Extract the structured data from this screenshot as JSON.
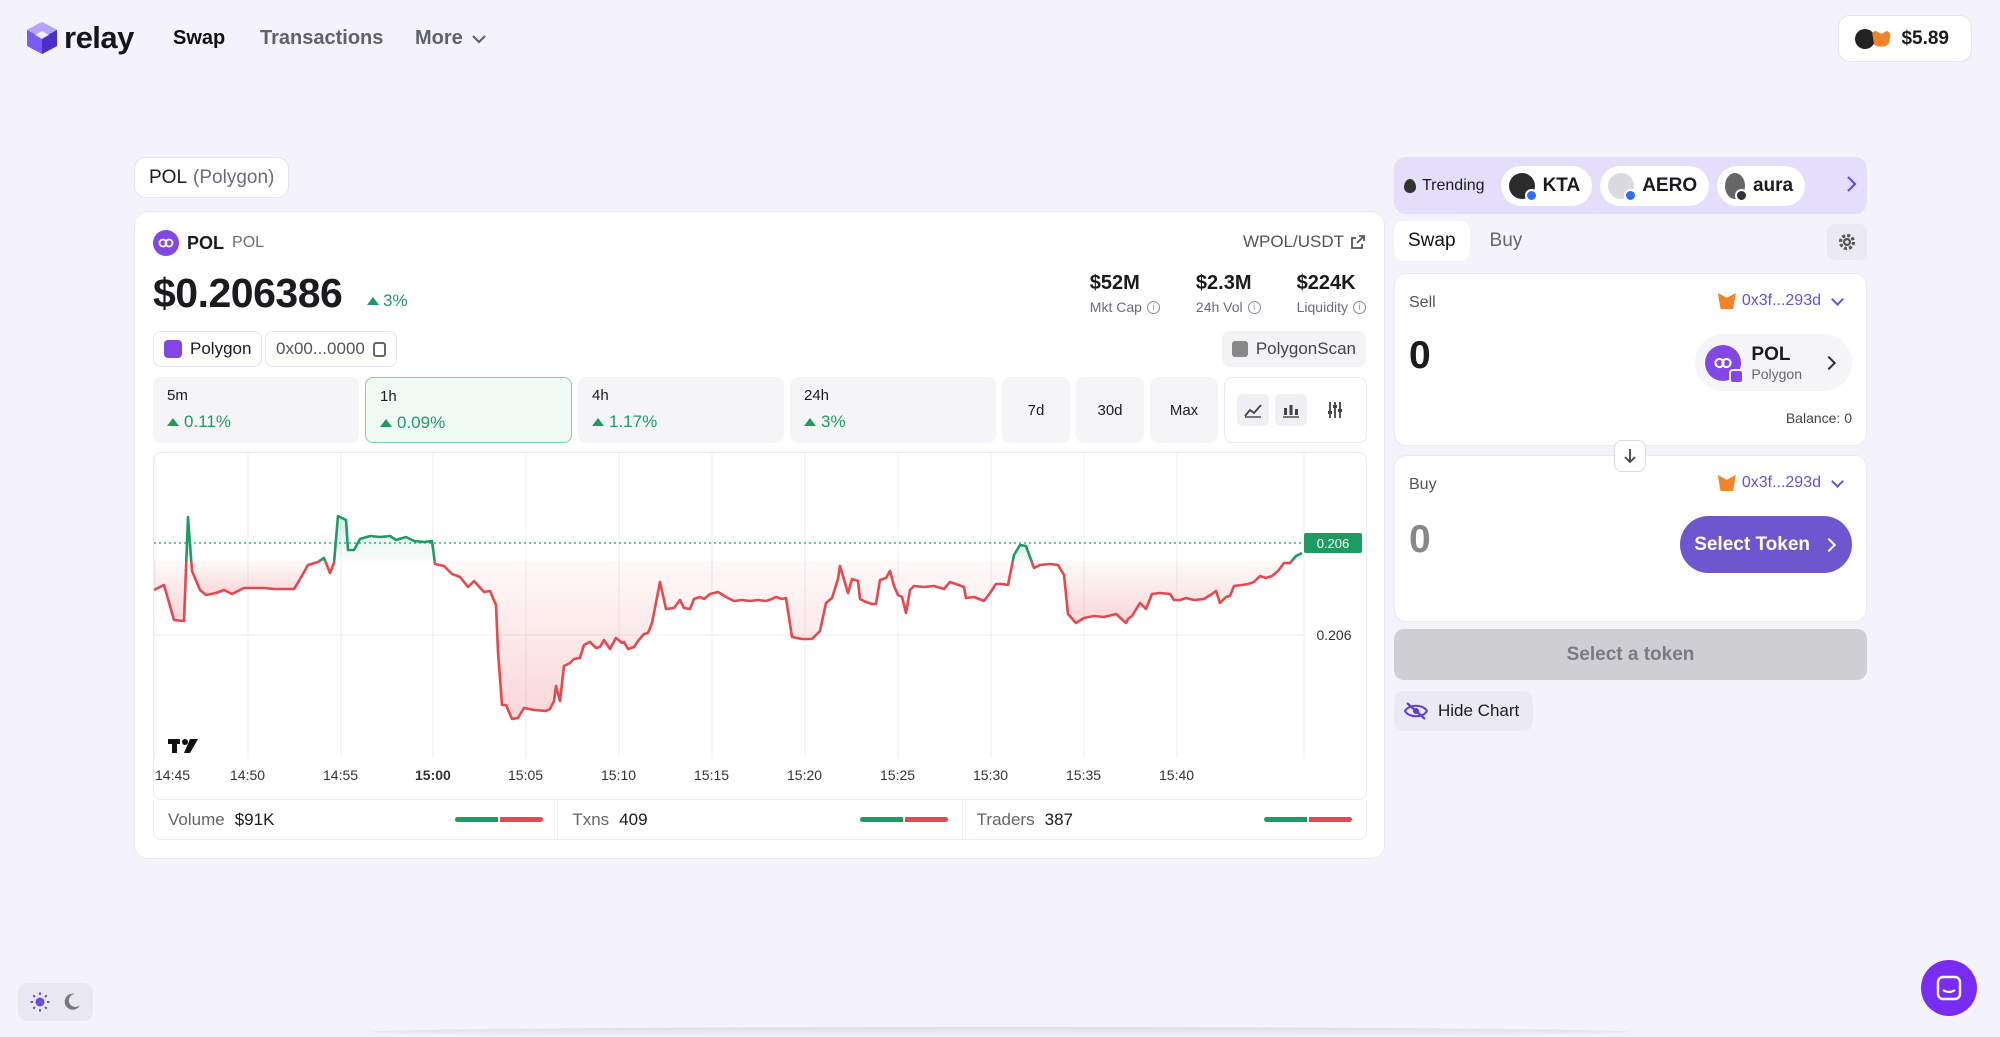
{
  "nav": {
    "brand": "relay",
    "links": [
      "Swap",
      "Transactions",
      "More"
    ],
    "wallet_balance": "$5.89"
  },
  "token_tag": {
    "symbol": "POL",
    "network": "(Polygon)"
  },
  "token": {
    "symbol": "POL",
    "ticker": "POL",
    "pair": "WPOL/USDT",
    "price": "$0.206386",
    "change": "3%",
    "chain": "Polygon",
    "address": "0x00...0000",
    "explorer": "PolygonScan",
    "stats": [
      {
        "value": "$52M",
        "label": "Mkt Cap"
      },
      {
        "value": "$2.3M",
        "label": "24h Vol"
      },
      {
        "value": "$224K",
        "label": "Liquidity"
      }
    ]
  },
  "timeframes": [
    {
      "label": "5m",
      "change": "0.11%"
    },
    {
      "label": "1h",
      "change": "0.09%"
    },
    {
      "label": "4h",
      "change": "1.17%"
    },
    {
      "label": "24h",
      "change": "3%"
    },
    {
      "label": "7d"
    },
    {
      "label": "30d"
    },
    {
      "label": "Max"
    }
  ],
  "chart": {
    "price_tag": "0.206",
    "axis_label": "0.206",
    "x_ticks": [
      "14:45",
      "14:50",
      "14:55",
      "15:00",
      "15:05",
      "15:10",
      "15:15",
      "15:20",
      "15:25",
      "15:30",
      "15:35",
      "15:40"
    ],
    "colors": {
      "up": "#1e9b63",
      "down": "#e5484d"
    }
  },
  "chart_data": {
    "type": "area",
    "x": [
      "14:45",
      "14:50",
      "14:55",
      "15:00",
      "15:05",
      "15:10",
      "15:15",
      "15:20",
      "15:25",
      "15:30",
      "15:35",
      "15:40"
    ],
    "baseline": "0.206",
    "last": "0.206",
    "x_tick_labels": [
      "14:45",
      "14:50",
      "14:55",
      "15:00",
      "15:05",
      "15:10",
      "15:15",
      "15:20",
      "15:25",
      "15:30",
      "15:35",
      "15:40"
    ],
    "y_tick_labels": [
      "0.206"
    ]
  },
  "footer": {
    "volume_label": "Volume",
    "volume": "$91K",
    "txns_label": "Txns",
    "txns": "409",
    "traders_label": "Traders",
    "traders": "387"
  },
  "trending": {
    "label": "Trending",
    "tokens": [
      "KTA",
      "AERO",
      "aura"
    ]
  },
  "swap": {
    "tabs": [
      "Swap",
      "Buy"
    ],
    "sell_label": "Sell",
    "sell_address": "0x3f...293d",
    "sell_amount": "0",
    "sell_token": "POL",
    "sell_chain": "Polygon",
    "balance": "Balance: 0",
    "buy_label": "Buy",
    "buy_address": "0x3f...293d",
    "buy_amount": "0",
    "select_token": "Select Token",
    "cta": "Select a token",
    "hide_chart": "Hide Chart"
  }
}
